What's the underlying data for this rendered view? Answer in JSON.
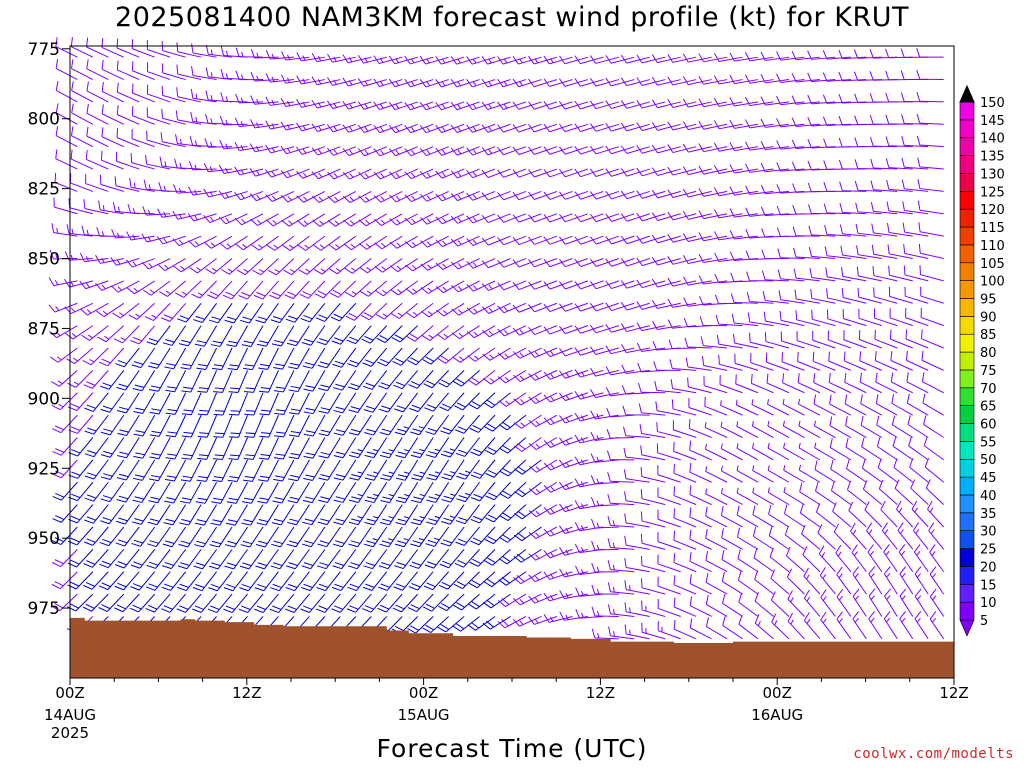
{
  "header": {
    "title": "2025081400 NAM3KM forecast wind profile (kt) for KRUT"
  },
  "footer": {
    "credit": "coolwx.com/modelts"
  },
  "colors": {
    "terrain": "#a0522d",
    "barb_slow": "#8000ff",
    "barb_mid": "#0000d0"
  },
  "chart_data": {
    "type": "wind-barb-profile",
    "title": "2025081400 NAM3KM forecast wind profile (kt) for KRUT",
    "xlabel": "Forecast Time (UTC)",
    "ylabel": "",
    "y_ticks": [
      "775",
      "800",
      "825",
      "850",
      "875",
      "900",
      "925",
      "950",
      "975"
    ],
    "y_range_hpa": [
      774,
      1000
    ],
    "x_range_hours": [
      0,
      60
    ],
    "x_ticks": [
      {
        "label": "00Z",
        "sub": "14AUG",
        "sub2": "2025"
      },
      {
        "label": "12Z",
        "sub": "",
        "sub2": ""
      },
      {
        "label": "00Z",
        "sub": "15AUG",
        "sub2": ""
      },
      {
        "label": "12Z",
        "sub": "",
        "sub2": ""
      },
      {
        "label": "00Z",
        "sub": "16AUG",
        "sub2": ""
      },
      {
        "label": "12Z",
        "sub": "",
        "sub2": ""
      }
    ],
    "colorbar_levels": [
      "5",
      "10",
      "15",
      "20",
      "25",
      "30",
      "35",
      "40",
      "45",
      "50",
      "55",
      "60",
      "65",
      "70",
      "75",
      "80",
      "85",
      "90",
      "95",
      "100",
      "105",
      "110",
      "115",
      "120",
      "125",
      "130",
      "135",
      "140",
      "145",
      "150"
    ],
    "colorbar_colors": [
      "#8000ff",
      "#6020ff",
      "#2020ff",
      "#0000d8",
      "#1050f0",
      "#2070ff",
      "#2090ff",
      "#00b0ff",
      "#00d0e0",
      "#00e8c0",
      "#00e080",
      "#00d040",
      "#30e030",
      "#80f020",
      "#c0f000",
      "#f0f000",
      "#f8d800",
      "#f8b800",
      "#f89800",
      "#f08000",
      "#f06000",
      "#f04000",
      "#f02000",
      "#ff0000",
      "#f0004a",
      "#f00080",
      "#f000a8",
      "#f000c8",
      "#f000e8",
      "#f000ff"
    ],
    "surface_pressure_hpa": [
      [
        0,
        978.5
      ],
      [
        1,
        979.5
      ],
      [
        3,
        979.5
      ],
      [
        5,
        979.5
      ],
      [
        7.5,
        979
      ],
      [
        8.5,
        979.5
      ],
      [
        10.5,
        980
      ],
      [
        12.5,
        981
      ],
      [
        14.5,
        981.5
      ],
      [
        21.5,
        983
      ],
      [
        23,
        984
      ],
      [
        26,
        985
      ],
      [
        31,
        985.5
      ],
      [
        34,
        986
      ],
      [
        36.7,
        987
      ],
      [
        41,
        987.5
      ],
      [
        45,
        987
      ],
      [
        60,
        987
      ]
    ],
    "wind_profile_sample_kt": [
      {
        "hour": 0,
        "pressure": 800,
        "speed": 10,
        "direction": 300
      },
      {
        "hour": 12,
        "pressure": 900,
        "speed": 20,
        "direction": 200
      },
      {
        "hour": 24,
        "pressure": 925,
        "speed": 25,
        "direction": 210
      },
      {
        "hour": 36,
        "pressure": 850,
        "speed": 10,
        "direction": 250
      },
      {
        "hour": 48,
        "pressure": 925,
        "speed": 5,
        "direction": 300
      },
      {
        "hour": 56,
        "pressure": 975,
        "speed": 15,
        "direction": 330
      }
    ]
  }
}
